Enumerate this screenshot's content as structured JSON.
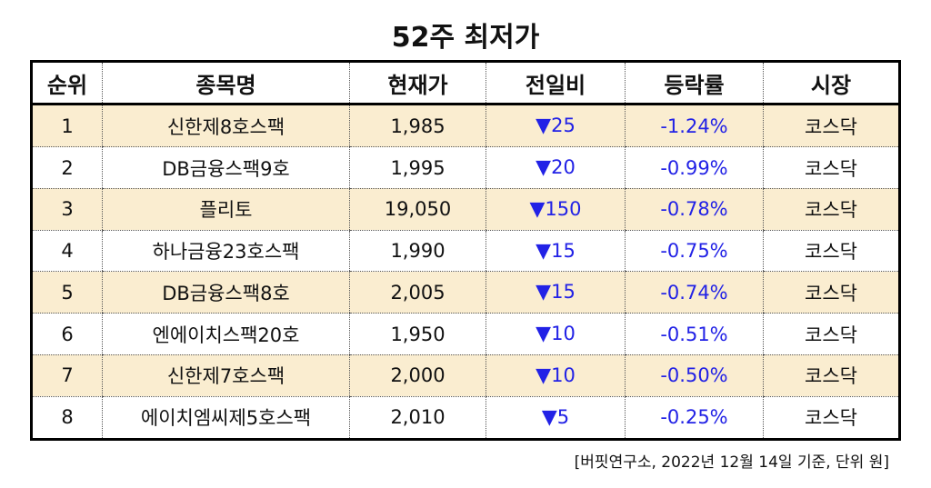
{
  "title": "52주 최저가",
  "columns": [
    "순위",
    "종목명",
    "현재가",
    "전일비",
    "등락률",
    "시장"
  ],
  "rows": [
    {
      "rank": "1",
      "name": "신한제8호스팩",
      "price": "1,985",
      "change_symbol": "▼",
      "change": "25",
      "rate": "-1.24%",
      "market": "코스닥"
    },
    {
      "rank": "2",
      "name": "DB금융스팩9호",
      "price": "1,995",
      "change_symbol": "▼",
      "change": "20",
      "rate": "-0.99%",
      "market": "코스닥"
    },
    {
      "rank": "3",
      "name": "플리토",
      "price": "19,050",
      "change_symbol": "▼",
      "change": "150",
      "rate": "-0.78%",
      "market": "코스닥"
    },
    {
      "rank": "4",
      "name": "하나금융23호스팩",
      "price": "1,990",
      "change_symbol": "▼",
      "change": "15",
      "rate": "-0.75%",
      "market": "코스닥"
    },
    {
      "rank": "5",
      "name": "DB금융스팩8호",
      "price": "2,005",
      "change_symbol": "▼",
      "change": "15",
      "rate": "-0.74%",
      "market": "코스닥"
    },
    {
      "rank": "6",
      "name": "엔에이치스팩20호",
      "price": "1,950",
      "change_symbol": "▼",
      "change": "10",
      "rate": "-0.51%",
      "market": "코스닥"
    },
    {
      "rank": "7",
      "name": "신한제7호스팩",
      "price": "2,000",
      "change_symbol": "▼",
      "change": "10",
      "rate": "-0.50%",
      "market": "코스닥"
    },
    {
      "rank": "8",
      "name": "에이치엠씨제5호스팩",
      "price": "2,010",
      "change_symbol": "▼",
      "change": "5",
      "rate": "-0.25%",
      "market": "코스닥"
    }
  ],
  "footnote": "[버핏연구소, 2022년 12월 14일 기준, 단위 원]",
  "colors": {
    "shaded_row": "#faedd0",
    "negative": "#2222e6"
  }
}
